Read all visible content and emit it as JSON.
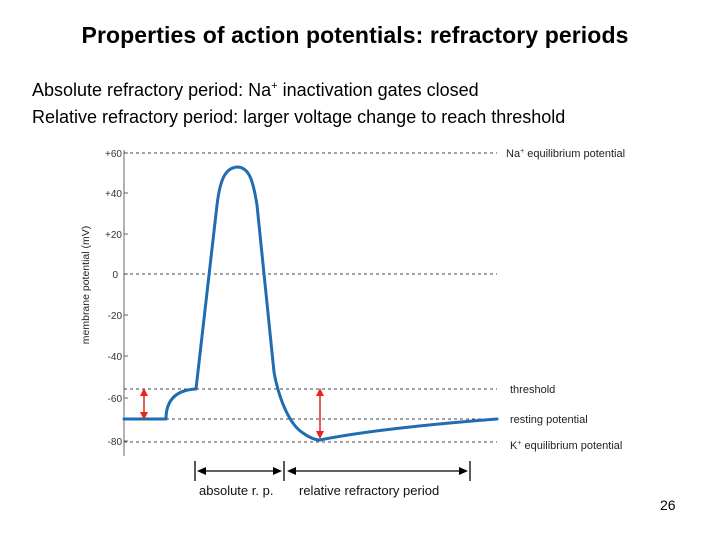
{
  "title": "Properties of action potentials: refractory periods",
  "lines": [
    {
      "prefix": "Absolute refractory period: Na",
      "sup": "+",
      "suffix": " inactivation gates closed"
    },
    {
      "text": "Relative refractory period: larger voltage change to reach threshold"
    }
  ],
  "figure": {
    "y_axis_label": "membrane potential (mV)",
    "y_ticks": [
      "+60",
      "+40",
      "+20",
      "0",
      "-20",
      "-40",
      "-60",
      "-80"
    ],
    "levels": {
      "na_equilibrium": {
        "prefix": "Na",
        "sup": "+",
        "suffix": " equilibrium potential"
      },
      "threshold": "threshold",
      "resting": "resting potential",
      "k_equilibrium": {
        "prefix": "K",
        "sup": "+",
        "suffix": " equilibrium potential"
      }
    },
    "periods": {
      "absolute": "absolute r. p.",
      "relative": "relative refractory period"
    },
    "colors": {
      "trace": "#1f6db0",
      "arrow": "#e8241c",
      "dashes": "#444444"
    }
  },
  "page_number": "26"
}
